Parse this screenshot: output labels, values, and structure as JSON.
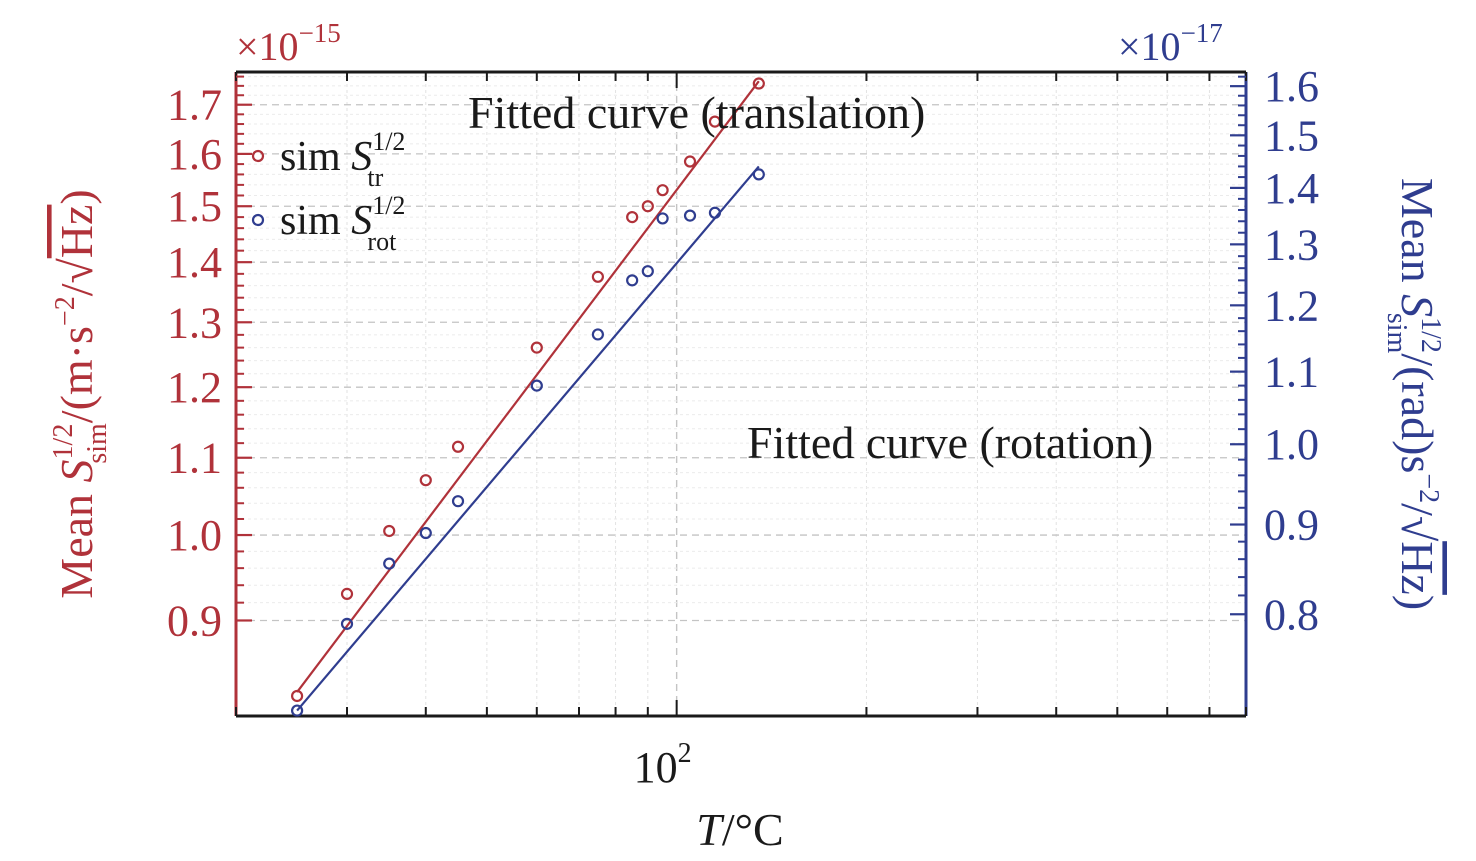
{
  "chart_data": {
    "type": "scatter",
    "xlabel": {
      "italic": "T",
      "rest": "/°C"
    },
    "x_scale": "log",
    "xlim": [
      20,
      800
    ],
    "x_tick_labels": [
      {
        "base": "10",
        "exp": "2",
        "value": 100
      }
    ],
    "grid": true,
    "legend_position": "top-left",
    "y_left": {
      "label": "Mean S_sim^{1/2}/(m·s^-2/√Hz)",
      "label_parts": {
        "prefix": "Mean ",
        "var": "S",
        "sup": "1/2",
        "sub": "sim",
        "unit_open": "/(m·s",
        "unit_exp": "−2",
        "unit_mid": "/",
        "sqrt": "√",
        "sqrt_arg": "Hz",
        "unit_close": ")"
      },
      "scale_factor": {
        "times": "×10",
        "exp": "−15"
      },
      "scale": "log",
      "ylim": [
        0.8,
        1.77
      ],
      "ticks": [
        "0.9",
        "1.0",
        "1.1",
        "1.2",
        "1.3",
        "1.4",
        "1.5",
        "1.6",
        "1.7"
      ],
      "tick_values": [
        0.9,
        1.0,
        1.1,
        1.2,
        1.3,
        1.4,
        1.5,
        1.6,
        1.7
      ],
      "color": "#b0323a"
    },
    "y_right": {
      "label": "Mean S_sim^{1/2}/(rad)s^-2/√Hz)",
      "label_parts": {
        "prefix": "Mean ",
        "var": "S",
        "sup": "1/2",
        "sub": "sim",
        "unit_open": "/(rad)s",
        "unit_exp": "−2",
        "unit_mid": "/",
        "sqrt": "√",
        "sqrt_arg": "Hz",
        "unit_close": ")"
      },
      "scale_factor": {
        "times": "×10",
        "exp": "−17"
      },
      "scale": "log",
      "ylim": [
        0.7,
        1.63
      ],
      "ticks": [
        "0.8",
        "0.9",
        "1.0",
        "1.1",
        "1.2",
        "1.3",
        "1.4",
        "1.5",
        "1.6"
      ],
      "tick_values": [
        0.8,
        0.9,
        1.0,
        1.1,
        1.2,
        1.3,
        1.4,
        1.5,
        1.6
      ],
      "color": "#2f3d8f"
    },
    "series": [
      {
        "legend": {
          "prefix": "sim ",
          "var": "S",
          "sup": "1/2",
          "sub": "tr"
        },
        "axis": "left",
        "color": "#b0323a",
        "x": [
          25,
          30,
          35,
          40,
          45,
          60,
          75,
          85,
          90,
          95,
          105,
          115,
          135
        ],
        "y": [
          0.82,
          0.93,
          1.005,
          1.07,
          1.115,
          1.26,
          1.375,
          1.48,
          1.5,
          1.53,
          1.585,
          1.665,
          1.745
        ],
        "fit": {
          "x": [
            25,
            135
          ],
          "y": [
            0.824,
            1.75
          ]
        }
      },
      {
        "legend": {
          "prefix": "sim ",
          "var": "S",
          "sup": "1/2",
          "sub": "rot"
        },
        "axis": "right",
        "color": "#2f3d8f",
        "x": [
          25,
          30,
          35,
          40,
          45,
          60,
          75,
          85,
          90,
          95,
          105,
          115,
          135
        ],
        "y": [
          0.705,
          0.79,
          0.855,
          0.89,
          0.928,
          1.08,
          1.155,
          1.24,
          1.255,
          1.345,
          1.35,
          1.355,
          1.425
        ],
        "fit": {
          "x": [
            25,
            135
          ],
          "y": [
            0.705,
            1.44
          ]
        }
      }
    ],
    "annotations": [
      {
        "text": "Fitted curve (translation)"
      },
      {
        "text": "Fitted curve (rotation)"
      }
    ]
  }
}
